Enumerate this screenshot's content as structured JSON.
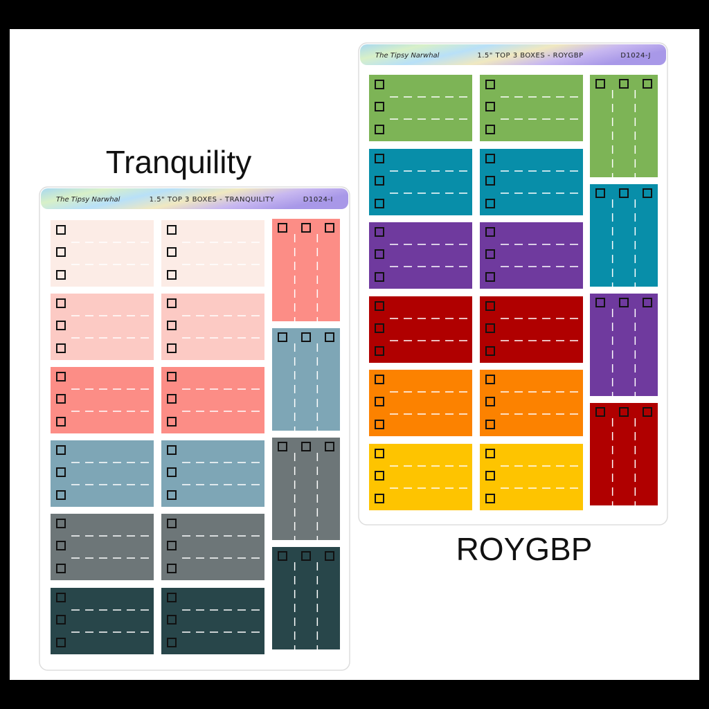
{
  "sheets": [
    {
      "label": "Tranquility",
      "brand": "The Tipsy Narwhal",
      "product": "1.5\" TOP 3 BOXES - TRANQUILITY",
      "code": "D1024-I",
      "box_colors": [
        "#fcece6",
        "#fccac4",
        "#fc8d86",
        "#7ea6b6",
        "#6d7678",
        "#28464a"
      ],
      "vertical_colors": [
        "#fc8d86",
        "#7ea6b6",
        "#6d7678",
        "#28464a"
      ]
    },
    {
      "label": "ROYGBP",
      "brand": "The Tipsy Narwhal",
      "product": "1.5\" TOP 3 BOXES - ROYGBP",
      "code": "D1024-J",
      "box_colors": [
        "#7db456",
        "#088ea9",
        "#6f3a9e",
        "#b00000",
        "#fc8200",
        "#fec400"
      ],
      "vertical_colors": [
        "#7db456",
        "#088ea9",
        "#6f3a9e",
        "#b00000"
      ]
    }
  ]
}
